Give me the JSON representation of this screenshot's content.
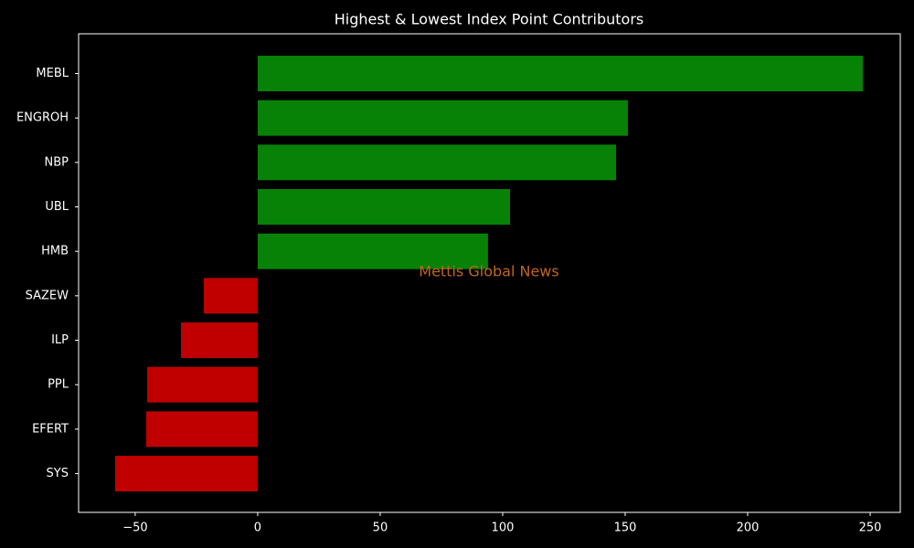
{
  "chart_data": {
    "type": "barh",
    "title": "Highest & Lowest Index Point Contributors",
    "categories": [
      "MEBL",
      "ENGROH",
      "NBP",
      "UBL",
      "HMB",
      "SAZEW",
      "ILP",
      "PPL",
      "EFERT",
      "SYS"
    ],
    "values": [
      247.0,
      151.1,
      146.3,
      103.0,
      94.0,
      -22.0,
      -31.3,
      -45.1,
      -45.5,
      -58.2
    ],
    "colors": [
      "#078207",
      "#078207",
      "#078207",
      "#078207",
      "#078207",
      "#c00000",
      "#c00000",
      "#c00000",
      "#c00000",
      "#c00000"
    ],
    "xlim": [
      -73.1,
      262.3
    ],
    "xticks": [
      {
        "value": -50,
        "label": "−50"
      },
      0,
      50,
      100,
      150,
      200,
      250
    ],
    "annotation": "Mettis Global News"
  }
}
